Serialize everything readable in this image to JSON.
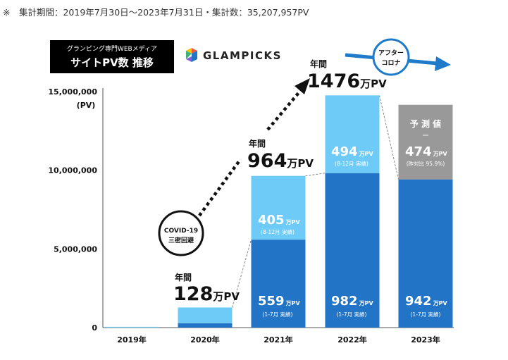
{
  "header": {
    "note": "※　集計期間：2019年7月30日〜2023年7月31日・集計数：35,207,957PV",
    "title_line1": "グランピング専門WEBメディア",
    "title_line2": "サイトPV数 推移",
    "brand": "GLAMPICKS"
  },
  "colors": {
    "dark_blue": "#2274c6",
    "light_blue": "#6ecbf8",
    "forecast_gray": "#999999",
    "arrow_blue": "#1f7bc9",
    "label_black": "#111111"
  },
  "chart_data": {
    "type": "bar",
    "title": "サイトPV数 推移",
    "categories": [
      "2019年",
      "2020年",
      "2021年",
      "2022年",
      "2023年"
    ],
    "ylabel": "(PV)",
    "ylim": [
      0,
      15000000
    ],
    "yticks": [
      "0",
      "5,000,000",
      "10,000,000",
      "15,000,000"
    ],
    "series": [
      {
        "name": "1-7月 実績",
        "values": [
          0,
          280000,
          5590000,
          9820000,
          9420000
        ]
      },
      {
        "name": "8-12月",
        "values": [
          50000,
          1000000,
          4050000,
          4940000,
          4740000
        ]
      }
    ],
    "annual_totals": [
      {
        "year": "2020年",
        "prefix": "年間",
        "value": "128",
        "unit": "万PV"
      },
      {
        "year": "2021年",
        "prefix": "年間",
        "value": "964",
        "unit": "万PV"
      },
      {
        "year": "2022年",
        "prefix": "年間",
        "value": "1476",
        "unit": "万PV"
      }
    ],
    "segment_labels": [
      {
        "value": "405",
        "unit": "万PV",
        "sub": "(8-12月 実績)"
      },
      {
        "value": "559",
        "unit": "万PV",
        "sub": "(1-7月 実績)"
      },
      {
        "value": "494",
        "unit": "万PV",
        "sub": "(8-12月 実績)"
      },
      {
        "value": "982",
        "unit": "万PV",
        "sub": "(1-7月 実績)"
      },
      {
        "value": "474",
        "unit": "万PV",
        "sub": "(昨対比 95.9%)"
      },
      {
        "value": "942",
        "unit": "万PV",
        "sub": "(1-7月 実績)"
      }
    ],
    "forecast_label": "予 測 値",
    "forecast_dash": "ー",
    "annotations": {
      "covid_line1": "COVID-19",
      "covid_line2": "三密回避",
      "after_line1": "アフター",
      "after_line2": "コロナ"
    }
  }
}
